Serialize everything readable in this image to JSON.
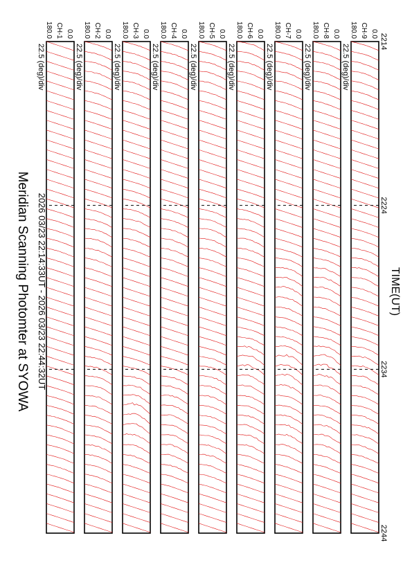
{
  "title": "Meridian Scanning Photomter at SYOWA",
  "subtitle": "2026 03/23 22:14:33UT - 2026 03/23 22:44:32UT",
  "chart_data": {
    "type": "line",
    "title": "Meridian Scanning Photomter at SYOWA",
    "subtitle": "2026 03/23 22:14:33UT - 2026 03/23 22:44:32UT",
    "xlabel": "TIME(UT)",
    "x_ticks": [
      "2214",
      "2224",
      "2234",
      "2244"
    ],
    "xlim": [
      "2214",
      "2244"
    ],
    "y_scale_label": "22.5 (deg)/div",
    "ylim": [
      0.0,
      180.0
    ],
    "y_tick_labels": [
      "180.0",
      "0.0"
    ],
    "trace_color": "#e01010",
    "series": [
      {
        "name": "CH-1",
        "peak_time": [
          2226,
          2237,
          2240
        ],
        "peak_strength": [
          0.15,
          0.2,
          0.15
        ]
      },
      {
        "name": "CH-2",
        "peak_time": [
          2216,
          2226,
          2235,
          2239
        ],
        "peak_strength": [
          0.35,
          0.4,
          0.55,
          0.45
        ]
      },
      {
        "name": "CH-3",
        "peak_time": [
          2216,
          2225,
          2236,
          2238
        ],
        "peak_strength": [
          0.35,
          0.4,
          0.7,
          0.55
        ]
      },
      {
        "name": "CH-4",
        "peak_time": [
          2216,
          2226,
          2236,
          2239
        ],
        "peak_strength": [
          0.3,
          0.35,
          0.6,
          0.5
        ]
      },
      {
        "name": "CH-5",
        "peak_time": [
          2216,
          2226,
          2235,
          2239
        ],
        "peak_strength": [
          0.35,
          0.45,
          0.55,
          0.5
        ]
      },
      {
        "name": "CH-6",
        "peak_time": [
          2215,
          2226,
          2234,
          2238
        ],
        "peak_strength": [
          0.4,
          0.45,
          0.8,
          0.6
        ]
      },
      {
        "name": "CH-7",
        "peak_time": [
          2216,
          2229,
          2234,
          2238
        ],
        "peak_strength": [
          0.35,
          0.7,
          0.9,
          0.65
        ]
      },
      {
        "name": "CH-8",
        "peak_time": [
          2216,
          2229,
          2234,
          2238
        ],
        "peak_strength": [
          0.35,
          0.6,
          0.9,
          0.6
        ]
      },
      {
        "name": "CH-9",
        "peak_time": [
          2216,
          2228,
          2234,
          2238
        ],
        "peak_strength": [
          0.3,
          0.5,
          0.6,
          0.5
        ]
      }
    ]
  }
}
